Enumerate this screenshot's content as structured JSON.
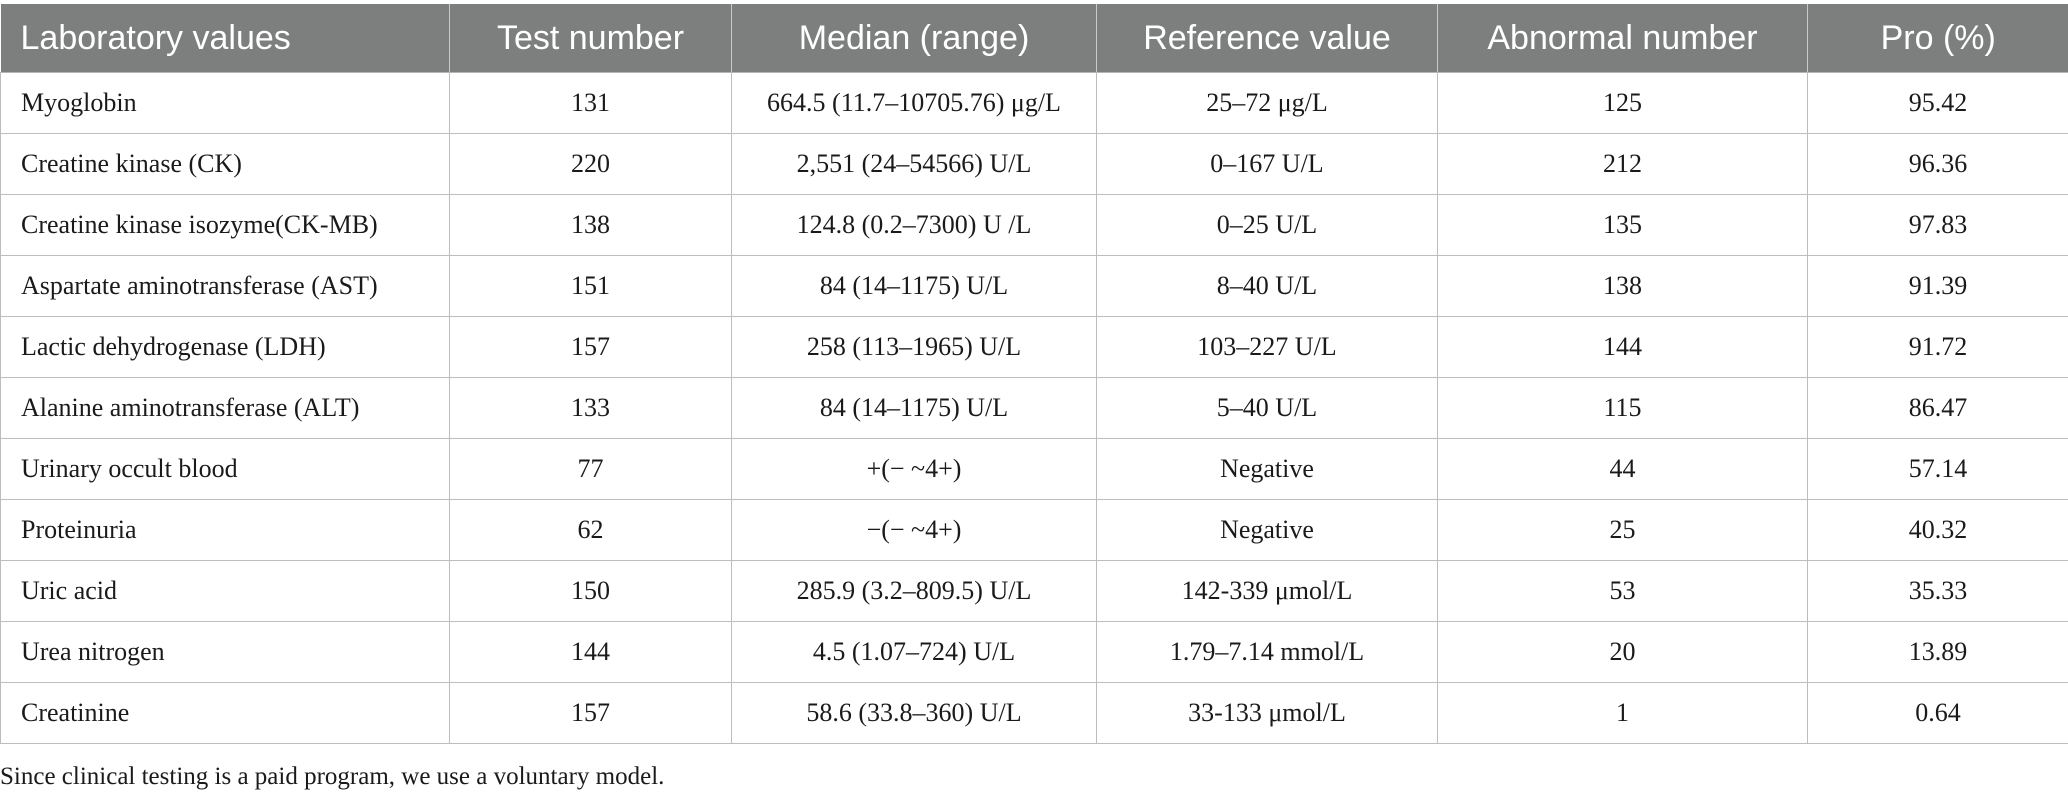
{
  "table": {
    "headers": [
      "Laboratory values",
      "Test number",
      "Median (range)",
      "Reference value",
      "Abnormal number",
      "Pro (%)"
    ],
    "rows": [
      [
        "Myoglobin",
        "131",
        "664.5 (11.7–10705.76) μg/L",
        "25–72 μg/L",
        "125",
        "95.42"
      ],
      [
        "Creatine kinase (CK)",
        "220",
        "2,551 (24–54566) U/L",
        "0–167 U/L",
        "212",
        "96.36"
      ],
      [
        "Creatine kinase isozyme(CK-MB)",
        "138",
        "124.8 (0.2–7300) U /L",
        "0–25 U/L",
        "135",
        "97.83"
      ],
      [
        "Aspartate aminotransferase (AST)",
        "151",
        "84 (14–1175) U/L",
        "8–40 U/L",
        "138",
        "91.39"
      ],
      [
        "Lactic dehydrogenase (LDH)",
        "157",
        "258 (113–1965) U/L",
        "103–227 U/L",
        "144",
        "91.72"
      ],
      [
        "Alanine aminotransferase (ALT)",
        "133",
        "84 (14–1175) U/L",
        "5–40 U/L",
        "115",
        "86.47"
      ],
      [
        "Urinary occult blood",
        "77",
        "+(− ~4+)",
        "Negative",
        "44",
        "57.14"
      ],
      [
        "Proteinuria",
        "62",
        "−(− ~4+)",
        "Negative",
        "25",
        "40.32"
      ],
      [
        "Uric acid",
        "150",
        "285.9 (3.2–809.5) U/L",
        "142-339 μmol/L",
        "53",
        "35.33"
      ],
      [
        "Urea nitrogen",
        "144",
        "4.5 (1.07–724) U/L",
        "1.79–7.14 mmol/L",
        "20",
        "13.89"
      ],
      [
        "Creatinine",
        "157",
        "58.6 (33.8–360) U/L",
        "33-133 μmol/L",
        "1",
        "0.64"
      ]
    ]
  },
  "footnote": "Since clinical testing is a paid program, we use a voluntary model."
}
